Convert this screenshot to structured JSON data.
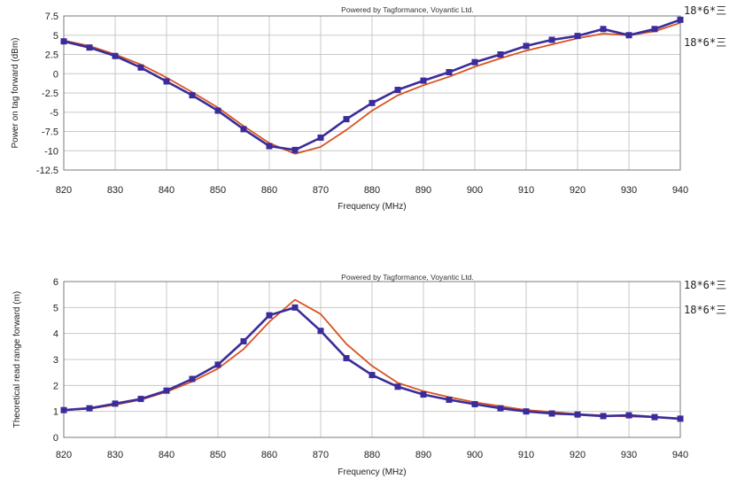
{
  "chart_data": [
    {
      "type": "line",
      "credit": "Powered by Tagformance, Voyantic Ltd.",
      "xlabel": "Frequency (MHz)",
      "ylabel": "Power on tag forward (dBm)",
      "xlim": [
        820,
        940
      ],
      "ylim": [
        -12.5,
        7.5
      ],
      "xticks": [
        "820",
        "830",
        "840",
        "850",
        "860",
        "870",
        "880",
        "890",
        "900",
        "910",
        "920",
        "930",
        "940"
      ],
      "yticks": [
        "7.5",
        "5",
        "2.5",
        "0",
        "-2.5",
        "-5",
        "-7.5",
        "-10",
        "-12.5"
      ],
      "grid": true,
      "legend_position": "right",
      "x": [
        820,
        825,
        830,
        835,
        840,
        845,
        850,
        855,
        860,
        865,
        870,
        875,
        880,
        885,
        890,
        895,
        900,
        905,
        910,
        915,
        920,
        925,
        930,
        935,
        940
      ],
      "series": [
        {
          "name": "18*6*三",
          "color": "#3a2c9a",
          "marker": "square",
          "values": [
            4.2,
            3.4,
            2.3,
            0.8,
            -1.0,
            -2.8,
            -4.8,
            -7.2,
            -9.4,
            -9.9,
            -8.3,
            -5.9,
            -3.8,
            -2.1,
            -0.9,
            0.2,
            1.5,
            2.5,
            3.6,
            4.4,
            4.9,
            5.8,
            5.0,
            5.8,
            7.0
          ]
        },
        {
          "name": "18*6*三",
          "color": "#d8531f",
          "marker": "none",
          "values": [
            4.3,
            3.6,
            2.5,
            1.2,
            -0.5,
            -2.4,
            -4.4,
            -6.8,
            -9.0,
            -10.4,
            -9.5,
            -7.3,
            -4.8,
            -2.8,
            -1.5,
            -0.4,
            0.9,
            2.0,
            3.0,
            3.8,
            4.6,
            5.2,
            5.0,
            5.5,
            6.6
          ]
        }
      ]
    },
    {
      "type": "line",
      "credit": "Powered by Tagformance, Voyantic Ltd.",
      "xlabel": "Frequency (MHz)",
      "ylabel": "Theoretical read range forward (m)",
      "xlim": [
        820,
        940
      ],
      "ylim": [
        0,
        6
      ],
      "xticks": [
        "820",
        "830",
        "840",
        "850",
        "860",
        "870",
        "880",
        "890",
        "900",
        "910",
        "920",
        "930",
        "940"
      ],
      "yticks": [
        "6",
        "5",
        "4",
        "3",
        "2",
        "1",
        "0"
      ],
      "grid": true,
      "legend_position": "right",
      "x": [
        820,
        825,
        830,
        835,
        840,
        845,
        850,
        855,
        860,
        865,
        870,
        875,
        880,
        885,
        890,
        895,
        900,
        905,
        910,
        915,
        920,
        925,
        930,
        935,
        940
      ],
      "series": [
        {
          "name": "18*6*三",
          "color": "#3a2c9a",
          "marker": "square",
          "values": [
            1.05,
            1.12,
            1.3,
            1.48,
            1.8,
            2.25,
            2.8,
            3.7,
            4.7,
            5.0,
            4.1,
            3.05,
            2.4,
            1.95,
            1.65,
            1.45,
            1.28,
            1.12,
            1.0,
            0.92,
            0.88,
            0.82,
            0.85,
            0.78,
            0.72
          ]
        },
        {
          "name": "18*6*三",
          "color": "#d8531f",
          "marker": "none",
          "values": [
            1.05,
            1.1,
            1.25,
            1.45,
            1.75,
            2.15,
            2.65,
            3.4,
            4.45,
            5.3,
            4.75,
            3.6,
            2.75,
            2.1,
            1.78,
            1.55,
            1.35,
            1.2,
            1.05,
            0.98,
            0.9,
            0.85,
            0.8,
            0.78,
            0.7
          ]
        }
      ]
    }
  ]
}
